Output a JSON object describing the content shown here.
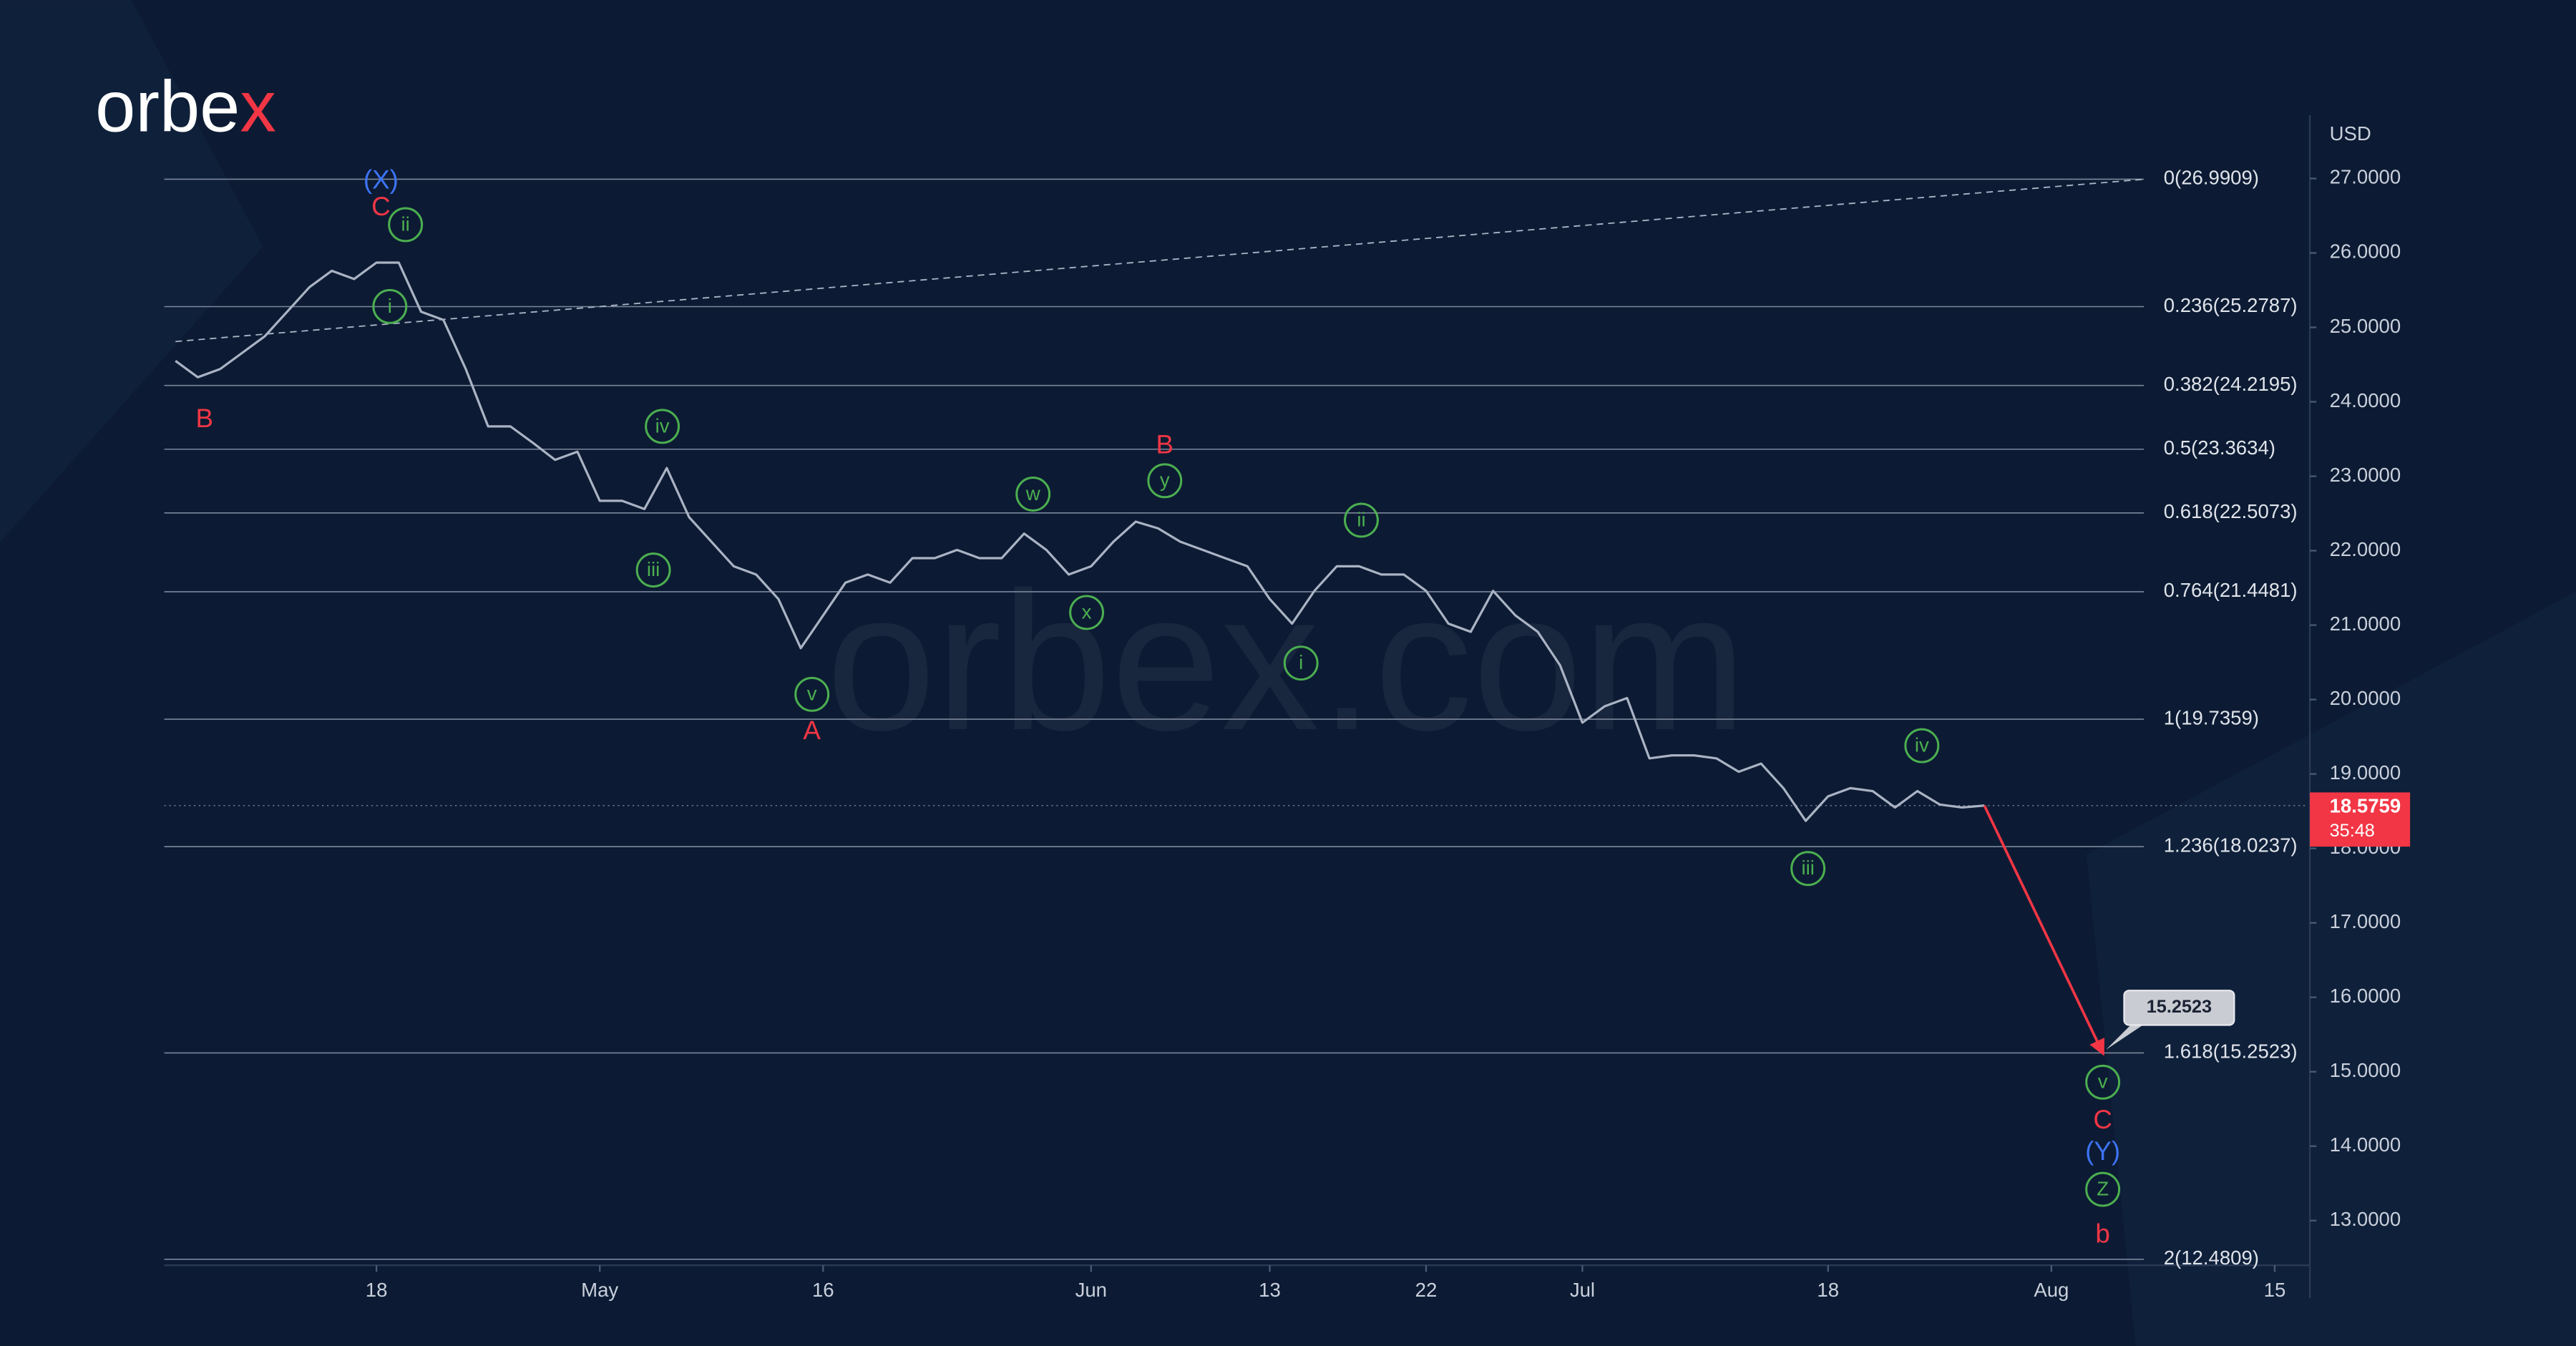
{
  "chart_data": {
    "type": "line",
    "logo": "orbex",
    "watermark": "orbex.com",
    "currency": "USD",
    "color": "#aab3c4",
    "xlim": [
      -0.5,
      95.5
    ],
    "ylim": [
      12.4,
      27.85
    ],
    "xticks": [
      {
        "value": 9,
        "label": "18"
      },
      {
        "value": 19,
        "label": "May"
      },
      {
        "value": 29,
        "label": "16"
      },
      {
        "value": 41,
        "label": "Jun"
      },
      {
        "value": 49,
        "label": "13"
      },
      {
        "value": 56,
        "label": "22"
      },
      {
        "value": 63,
        "label": "Jul"
      },
      {
        "value": 74,
        "label": "18"
      },
      {
        "value": 84,
        "label": "Aug"
      },
      {
        "value": 94,
        "label": "15"
      }
    ],
    "yticks": [
      {
        "value": 13,
        "label": "13.0000"
      },
      {
        "value": 14,
        "label": "14.0000"
      },
      {
        "value": 15,
        "label": "15.0000"
      },
      {
        "value": 16,
        "label": "16.0000"
      },
      {
        "value": 17,
        "label": "17.0000"
      },
      {
        "value": 18,
        "label": "18.0000"
      },
      {
        "value": 19,
        "label": "19.0000"
      },
      {
        "value": 20,
        "label": "20.0000"
      },
      {
        "value": 21,
        "label": "21.0000"
      },
      {
        "value": 22,
        "label": "22.0000"
      },
      {
        "value": 23,
        "label": "23.0000"
      },
      {
        "value": 24,
        "label": "24.0000"
      },
      {
        "value": 25,
        "label": "25.0000"
      },
      {
        "value": 26,
        "label": "26.0000"
      },
      {
        "value": 27,
        "label": "27.0000"
      }
    ],
    "x": [
      0,
      1,
      2,
      3,
      4,
      5,
      6,
      7,
      8,
      9,
      10,
      11,
      12,
      13,
      14,
      15,
      16,
      17,
      18,
      19,
      20,
      21,
      22,
      23,
      24,
      25,
      26,
      27,
      28,
      29,
      30,
      31,
      32,
      33,
      34,
      35,
      36,
      37,
      38,
      39,
      40,
      41,
      42,
      43,
      44,
      45,
      46,
      47,
      48,
      49,
      50,
      51,
      52,
      53,
      54,
      55,
      56,
      57,
      58,
      59,
      60,
      61,
      62,
      63,
      64,
      65,
      66,
      67,
      68,
      69,
      70,
      71,
      72,
      73,
      74,
      75,
      76,
      77,
      78,
      79,
      80,
      81
    ],
    "values": [
      24.55,
      24.33,
      24.44,
      24.66,
      24.88,
      25.21,
      25.54,
      25.76,
      25.65,
      25.87,
      25.87,
      25.21,
      25.1,
      24.44,
      23.67,
      23.67,
      23.45,
      23.22,
      23.33,
      22.67,
      22.67,
      22.56,
      23.11,
      22.45,
      22.12,
      21.79,
      21.68,
      21.35,
      20.69,
      21.13,
      21.57,
      21.68,
      21.57,
      21.9,
      21.9,
      22.01,
      21.9,
      21.9,
      22.23,
      22.01,
      21.68,
      21.79,
      22.12,
      22.39,
      22.3,
      22.12,
      22.01,
      21.9,
      21.79,
      21.35,
      21.02,
      21.46,
      21.79,
      21.79,
      21.68,
      21.68,
      21.46,
      21.02,
      20.91,
      21.46,
      21.13,
      20.91,
      20.46,
      19.69,
      19.91,
      20.02,
      19.21,
      19.25,
      19.25,
      19.21,
      19.03,
      19.14,
      18.81,
      18.37,
      18.7,
      18.81,
      18.77,
      18.55,
      18.77,
      18.59,
      18.55,
      18.5759
    ],
    "last_price": {
      "value": 18.5759,
      "label": "18.5759",
      "countdown": "35:48",
      "color": "#f23645"
    },
    "fib_levels": [
      {
        "label": "0(26.9909)",
        "value": 26.9909
      },
      {
        "label": "0.236(25.2787)",
        "value": 25.2787
      },
      {
        "label": "0.382(24.2195)",
        "value": 24.2195
      },
      {
        "label": "0.5(23.3634)",
        "value": 23.3634
      },
      {
        "label": "0.618(22.5073)",
        "value": 22.5073
      },
      {
        "label": "0.764(21.4481)",
        "value": 21.4481
      },
      {
        "label": "1(19.7359)",
        "value": 19.7359
      },
      {
        "label": "1.236(18.0237)",
        "value": 18.0237
      },
      {
        "label": "1.618(15.2523)",
        "value": 15.2523
      },
      {
        "label": "2(12.4809)",
        "value": 12.4809
      }
    ],
    "trendline": {
      "x": [
        0,
        88.2
      ],
      "values": [
        24.81,
        26.9909
      ]
    },
    "projection": {
      "x": [
        81,
        86.3
      ],
      "values": [
        18.5759,
        15.2523
      ],
      "label": "15.2523",
      "color": "#f23645"
    },
    "waves": [
      {
        "text": "(X)",
        "x": 9.2,
        "y": 26.96,
        "color": "#3d74f5",
        "circled": false
      },
      {
        "text": "C",
        "x": 9.2,
        "y": 26.6,
        "color": "#f23645",
        "circled": false
      },
      {
        "text": "ii",
        "x": 10.3,
        "y": 26.38,
        "color": "#4caf50",
        "circled": true
      },
      {
        "text": "i",
        "x": 9.6,
        "y": 25.28,
        "color": "#4caf50",
        "circled": true
      },
      {
        "text": "B",
        "x": 1.3,
        "y": 23.75,
        "color": "#f23645",
        "circled": false
      },
      {
        "text": "iv",
        "x": 21.8,
        "y": 23.67,
        "color": "#4caf50",
        "circled": true
      },
      {
        "text": "iii",
        "x": 21.4,
        "y": 21.74,
        "color": "#4caf50",
        "circled": true
      },
      {
        "text": "v",
        "x": 28.5,
        "y": 20.07,
        "color": "#4caf50",
        "circled": true
      },
      {
        "text": "A",
        "x": 28.5,
        "y": 19.56,
        "color": "#f23645",
        "circled": false
      },
      {
        "text": "w",
        "x": 38.4,
        "y": 22.76,
        "color": "#4caf50",
        "circled": true
      },
      {
        "text": "x",
        "x": 40.8,
        "y": 21.17,
        "color": "#4caf50",
        "circled": true
      },
      {
        "text": "y",
        "x": 44.3,
        "y": 22.94,
        "color": "#4caf50",
        "circled": true
      },
      {
        "text": "B",
        "x": 44.3,
        "y": 23.4,
        "color": "#f23645",
        "circled": false
      },
      {
        "text": "ii",
        "x": 53.1,
        "y": 22.41,
        "color": "#4caf50",
        "circled": true
      },
      {
        "text": "i",
        "x": 50.4,
        "y": 20.49,
        "color": "#4caf50",
        "circled": true
      },
      {
        "text": "iv",
        "x": 78.2,
        "y": 19.38,
        "color": "#4caf50",
        "circled": true
      },
      {
        "text": "iii",
        "x": 73.1,
        "y": 17.73,
        "color": "#4caf50",
        "circled": true
      },
      {
        "text": "v",
        "x": 86.3,
        "y": 14.86,
        "color": "#4caf50",
        "circled": true
      },
      {
        "text": "C",
        "x": 86.3,
        "y": 14.33,
        "color": "#f23645",
        "circled": false
      },
      {
        "text": "(Y)",
        "x": 86.3,
        "y": 13.91,
        "color": "#3d74f5",
        "circled": false
      },
      {
        "text": "Z",
        "x": 86.3,
        "y": 13.42,
        "color": "#4caf50",
        "circled": true
      },
      {
        "text": "b",
        "x": 86.3,
        "y": 12.8,
        "color": "#f23645",
        "circled": false
      }
    ]
  }
}
